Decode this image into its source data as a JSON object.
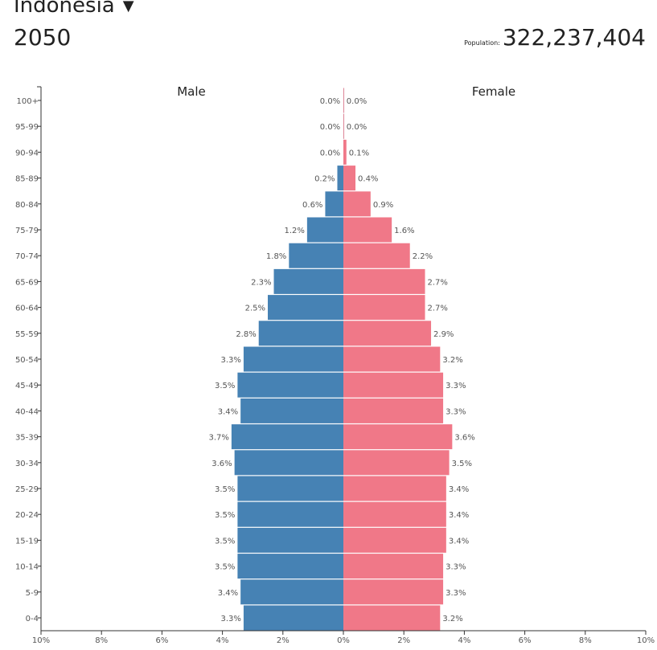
{
  "header": {
    "country": "Indonesia",
    "year": "2050",
    "population_label": "Population:",
    "population_value": "322,237,404"
  },
  "chart_data": {
    "type": "bar",
    "subtype": "population-pyramid",
    "left_label": "Male",
    "right_label": "Female",
    "categories": [
      "0-4",
      "5-9",
      "10-14",
      "15-19",
      "20-24",
      "25-29",
      "30-34",
      "35-39",
      "40-44",
      "45-49",
      "50-54",
      "55-59",
      "60-64",
      "65-69",
      "70-74",
      "75-79",
      "80-84",
      "85-89",
      "90-94",
      "95-99",
      "100+"
    ],
    "series": [
      {
        "name": "Male",
        "color": "#4682b4",
        "values": [
          3.3,
          3.4,
          3.5,
          3.5,
          3.5,
          3.5,
          3.6,
          3.7,
          3.4,
          3.5,
          3.3,
          2.8,
          2.5,
          2.3,
          1.8,
          1.2,
          0.6,
          0.2,
          0.0,
          0.0,
          0.0
        ],
        "labels": [
          "3.3%",
          "3.4%",
          "3.5%",
          "3.5%",
          "3.5%",
          "3.5%",
          "3.6%",
          "3.7%",
          "3.4%",
          "3.5%",
          "3.3%",
          "2.8%",
          "2.5%",
          "2.3%",
          "1.8%",
          "1.2%",
          "0.6%",
          "0.2%",
          "0.0%",
          "0.0%",
          "0.0%"
        ]
      },
      {
        "name": "Female",
        "color": "#f07888",
        "values": [
          3.2,
          3.3,
          3.3,
          3.4,
          3.4,
          3.4,
          3.5,
          3.6,
          3.3,
          3.3,
          3.2,
          2.9,
          2.7,
          2.7,
          2.2,
          1.6,
          0.9,
          0.4,
          0.1,
          0.0,
          0.0
        ],
        "labels": [
          "3.2%",
          "3.3%",
          "3.3%",
          "3.4%",
          "3.4%",
          "3.4%",
          "3.5%",
          "3.6%",
          "3.3%",
          "3.3%",
          "3.2%",
          "2.9%",
          "2.7%",
          "2.7%",
          "2.2%",
          "1.6%",
          "0.9%",
          "0.4%",
          "0.1%",
          "0.0%",
          "0.0%"
        ]
      }
    ],
    "x_ticks": [
      {
        "value": -10,
        "label": "10%"
      },
      {
        "value": -8,
        "label": "8%"
      },
      {
        "value": -6,
        "label": "6%"
      },
      {
        "value": -4,
        "label": "4%"
      },
      {
        "value": -2,
        "label": "2%"
      },
      {
        "value": 0,
        "label": "0%"
      },
      {
        "value": 2,
        "label": "2%"
      },
      {
        "value": 4,
        "label": "4%"
      },
      {
        "value": 6,
        "label": "6%"
      },
      {
        "value": 8,
        "label": "8%"
      },
      {
        "value": 10,
        "label": "10%"
      }
    ],
    "xlim": [
      -10,
      10
    ]
  }
}
